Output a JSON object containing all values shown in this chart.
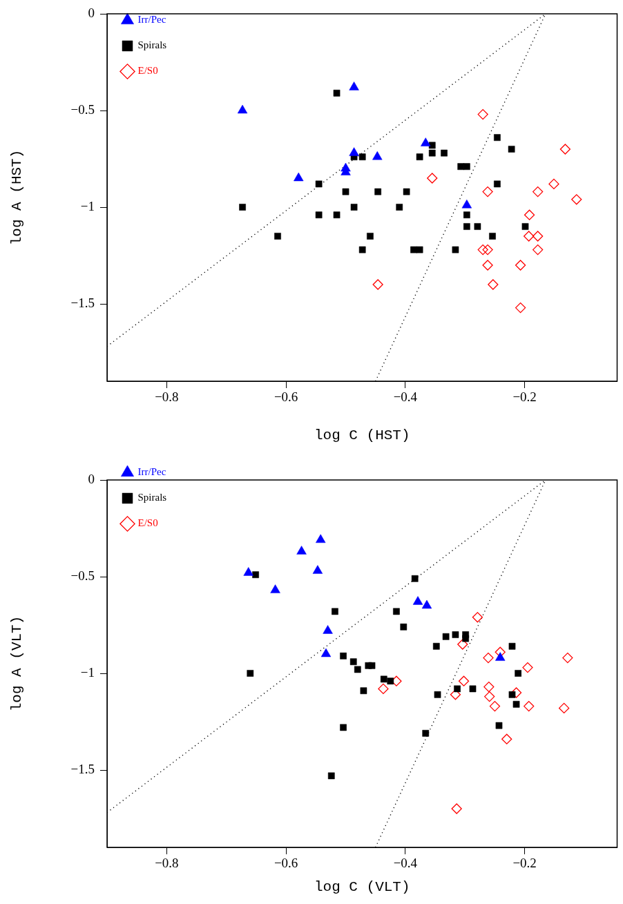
{
  "chart_data": [
    {
      "type": "scatter",
      "xlabel": "log C (HST)",
      "ylabel": "log A (HST)",
      "xlim": [
        -0.9,
        -0.045
      ],
      "ylim": [
        -1.9,
        0
      ],
      "xticks": [
        {
          "value": -0.8,
          "label": "−0.8"
        },
        {
          "value": -0.6,
          "label": "−0.6"
        },
        {
          "value": -0.4,
          "label": "−0.4"
        },
        {
          "value": -0.2,
          "label": "−0.2"
        }
      ],
      "yticks": [
        {
          "value": -1.5,
          "label": "−1.5"
        },
        {
          "value": -1,
          "label": "−1"
        },
        {
          "value": -0.5,
          "label": "−0.5"
        },
        0
      ],
      "grid": false,
      "legend": "top left",
      "series": [
        {
          "name": "Irr/Pec",
          "color": "#0000ff",
          "marker": "triangle",
          "x": [
            -0.673,
            -0.486,
            -0.579,
            -0.5,
            -0.5,
            -0.486,
            -0.447,
            -0.366,
            -0.297
          ],
          "values": [
            -0.5,
            -0.38,
            -0.85,
            -0.8,
            -0.82,
            -0.72,
            -0.74,
            -0.67,
            -0.99
          ]
        },
        {
          "name": "Spirals",
          "color": "#000000",
          "marker": "square",
          "x": [
            -0.673,
            -0.515,
            -0.545,
            -0.5,
            -0.486,
            -0.545,
            -0.515,
            -0.614,
            -0.472,
            -0.486,
            -0.472,
            -0.446,
            -0.398,
            -0.41,
            -0.459,
            -0.386,
            -0.376,
            -0.376,
            -0.355,
            -0.355,
            -0.335,
            -0.307,
            -0.297,
            -0.246,
            -0.222,
            -0.246,
            -0.297,
            -0.297,
            -0.279,
            -0.199,
            -0.254,
            -0.316
          ],
          "values": [
            -1.0,
            -0.41,
            -0.88,
            -0.92,
            -1.0,
            -1.04,
            -1.04,
            -1.15,
            -1.22,
            -0.74,
            -0.74,
            -0.92,
            -0.92,
            -1.0,
            -1.15,
            -1.22,
            -1.22,
            -0.74,
            -0.68,
            -0.72,
            -0.72,
            -0.79,
            -0.79,
            -0.64,
            -0.7,
            -0.88,
            -1.04,
            -1.1,
            -1.1,
            -1.1,
            -1.15,
            -1.22
          ]
        },
        {
          "name": "E/S0",
          "color": "#ff0000",
          "marker": "diamond",
          "x": [
            -0.27,
            -0.132,
            -0.355,
            -0.151,
            -0.262,
            -0.178,
            -0.113,
            -0.192,
            -0.193,
            -0.178,
            -0.27,
            -0.262,
            -0.178,
            -0.262,
            -0.207,
            -0.446,
            -0.253,
            -0.207
          ],
          "values": [
            -0.52,
            -0.7,
            -0.85,
            -0.88,
            -0.92,
            -0.92,
            -0.96,
            -1.04,
            -1.15,
            -1.15,
            -1.22,
            -1.22,
            -1.22,
            -1.3,
            -1.3,
            -1.4,
            -1.4,
            -1.52
          ]
        },
        {
          "type": "line",
          "color": "#000000",
          "line_style": "dotted",
          "marker": "none",
          "x": [
            -0.9,
            -0.165
          ],
          "values": [
            -1.72,
            0
          ]
        },
        {
          "type": "line",
          "color": "#000000",
          "line_style": "dotted",
          "marker": "none",
          "x": [
            -0.45,
            -0.165
          ],
          "values": [
            -1.9,
            0
          ]
        }
      ]
    },
    {
      "type": "scatter",
      "xlabel": "log C (VLT)",
      "ylabel": "log A (VLT)",
      "xlim": [
        -0.9,
        -0.045
      ],
      "ylim": [
        -1.9,
        0
      ],
      "xticks": [
        {
          "value": -0.8,
          "label": "−0.8"
        },
        {
          "value": -0.6,
          "label": "−0.6"
        },
        {
          "value": -0.4,
          "label": "−0.4"
        },
        {
          "value": -0.2,
          "label": "−0.2"
        }
      ],
      "yticks": [
        {
          "value": -1.5,
          "label": "−1.5"
        },
        {
          "value": -1,
          "label": "−1"
        },
        {
          "value": -0.5,
          "label": "−0.5"
        },
        0
      ],
      "grid": false,
      "legend": "top left",
      "series": [
        {
          "name": "Irr/Pec",
          "color": "#0000ff",
          "marker": "triangle",
          "x": [
            -0.663,
            -0.542,
            -0.574,
            -0.547,
            -0.618,
            -0.53,
            -0.533,
            -0.379,
            -0.364,
            -0.241
          ],
          "values": [
            -0.48,
            -0.31,
            -0.37,
            -0.47,
            -0.57,
            -0.78,
            -0.9,
            -0.63,
            -0.65,
            -0.92
          ]
        },
        {
          "name": "Spirals",
          "color": "#000000",
          "marker": "square",
          "x": [
            -0.651,
            -0.518,
            -0.66,
            -0.504,
            -0.487,
            -0.48,
            -0.47,
            -0.504,
            -0.524,
            -0.384,
            -0.415,
            -0.403,
            -0.462,
            -0.456,
            -0.436,
            -0.425,
            -0.348,
            -0.332,
            -0.316,
            -0.299,
            -0.299,
            -0.346,
            -0.313,
            -0.287,
            -0.366,
            -0.221,
            -0.211,
            -0.221,
            -0.214,
            -0.243
          ],
          "values": [
            -0.49,
            -0.68,
            -1.0,
            -0.91,
            -0.94,
            -0.98,
            -1.09,
            -1.28,
            -1.53,
            -0.51,
            -0.68,
            -0.76,
            -0.96,
            -0.96,
            -1.03,
            -1.04,
            -0.86,
            -0.81,
            -0.8,
            -0.8,
            -0.82,
            -1.11,
            -1.08,
            -1.08,
            -1.31,
            -0.86,
            -1.0,
            -1.11,
            -1.16,
            -1.27
          ]
        },
        {
          "name": "E/S0",
          "color": "#ff0000",
          "marker": "diamond",
          "x": [
            -0.415,
            -0.437,
            -0.279,
            -0.304,
            -0.261,
            -0.241,
            -0.195,
            -0.128,
            -0.302,
            -0.316,
            -0.26,
            -0.259,
            -0.25,
            -0.214,
            -0.193,
            -0.134,
            -0.23,
            -0.314
          ],
          "values": [
            -1.04,
            -1.08,
            -0.71,
            -0.85,
            -0.92,
            -0.89,
            -0.97,
            -0.92,
            -1.04,
            -1.11,
            -1.07,
            -1.12,
            -1.17,
            -1.1,
            -1.17,
            -1.18,
            -1.34,
            -1.7
          ]
        },
        {
          "type": "line",
          "color": "#000000",
          "line_style": "dotted",
          "marker": "none",
          "x": [
            -0.9,
            -0.165
          ],
          "values": [
            -1.72,
            0
          ]
        },
        {
          "type": "line",
          "color": "#000000",
          "line_style": "dotted",
          "marker": "none",
          "x": [
            -0.45,
            -0.165
          ],
          "values": [
            -1.9,
            0
          ]
        }
      ]
    }
  ]
}
